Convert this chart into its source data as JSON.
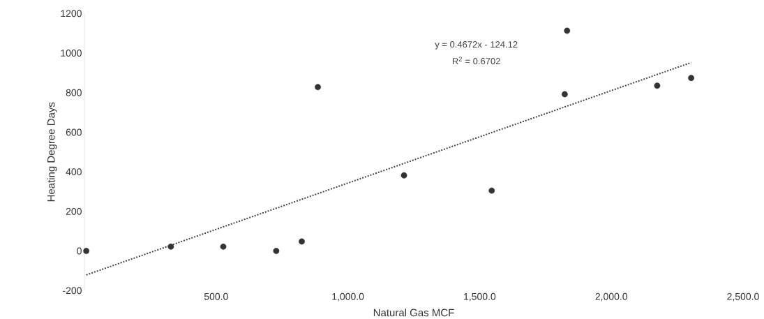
{
  "chart_data": {
    "type": "scatter",
    "xlabel": "Natural Gas MCF",
    "ylabel": "Heating Degree Days",
    "annotations": [
      "y = 0.4672x - 124.12",
      "R$^{2}$ = 0.6702"
    ],
    "xlim": [
      0,
      2500
    ],
    "ylim": [
      -200,
      1200
    ],
    "xticks": [
      {
        "value": 500,
        "label": "500.0"
      },
      {
        "value": 1000,
        "label": "1,000.0"
      },
      {
        "value": 1500,
        "label": "1,500.0"
      },
      {
        "value": 2000,
        "label": "2,000.0"
      },
      {
        "value": 2500,
        "label": "2,500.0"
      }
    ],
    "yticks": [
      -200,
      0,
      200,
      400,
      600,
      800,
      1000,
      1200
    ],
    "grid": false,
    "series": [
      {
        "color": "#333333",
        "marker": "circle",
        "x": [
          7,
          328,
          527,
          728,
          825,
          886,
          1213,
          1546,
          1823,
          1832,
          2174,
          2303
        ],
        "values": [
          0,
          22,
          22,
          0,
          48,
          828,
          382,
          305,
          792,
          1113,
          835,
          874
        ]
      },
      {
        "type": "line",
        "color": "#444444",
        "line_style": "dotted",
        "marker": "none",
        "x": [
          7,
          2303
        ],
        "values": [
          -121,
          952
        ]
      }
    ]
  }
}
